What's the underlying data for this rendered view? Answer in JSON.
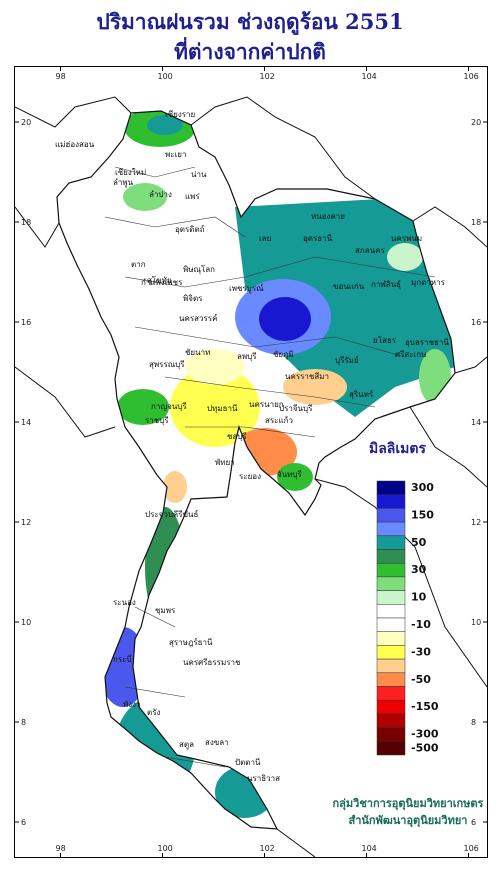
{
  "title_line1": "ปริมาณฝนรวม ช่วงฤดูร้อน 2551",
  "title_line2": "ที่ต่างจากค่าปกติ",
  "legend": {
    "title": "มิลลิเมตร",
    "bins": [
      {
        "color": "#000088",
        "label": "300"
      },
      {
        "color": "#1818d0",
        "label": ""
      },
      {
        "color": "#4a58ee",
        "label": "150"
      },
      {
        "color": "#6a8aff",
        "label": ""
      },
      {
        "color": "#169a96",
        "label": "50"
      },
      {
        "color": "#2f8f52",
        "label": ""
      },
      {
        "color": "#2fbe2f",
        "label": "30"
      },
      {
        "color": "#7ede7e",
        "label": ""
      },
      {
        "color": "#caf5ca",
        "label": "10"
      },
      {
        "color": "#ffffff",
        "label": ""
      },
      {
        "color": "#ffffff",
        "label": "-10"
      },
      {
        "color": "#ffffc0",
        "label": ""
      },
      {
        "color": "#ffff50",
        "label": "-30"
      },
      {
        "color": "#ffcf90",
        "label": ""
      },
      {
        "color": "#ff8c48",
        "label": "-50"
      },
      {
        "color": "#ff2020",
        "label": ""
      },
      {
        "color": "#ee0000",
        "label": "-150"
      },
      {
        "color": "#b00000",
        "label": ""
      },
      {
        "color": "#7a0000",
        "label": "-300"
      },
      {
        "color": "#550000",
        "label": "-500"
      }
    ]
  },
  "lon_ticks": [
    "98",
    "100",
    "102",
    "104",
    "106"
  ],
  "lat_ticks": [
    "20",
    "18",
    "16",
    "14",
    "12",
    "10",
    "8",
    "6"
  ],
  "provinces": [
    "แม่ฮ่องสอน",
    "เชียงราย",
    "พะเยา",
    "เชียงใหม่",
    "ลำพูน",
    "น่าน",
    "ลำปาง",
    "แพร่",
    "อุตรดิตถ์",
    "ตาก",
    "สุโขทัย",
    "พิษณุโลก",
    "เลย",
    "หนองคาย",
    "อุดรธานี",
    "สกลนคร",
    "นครพนม",
    "กาฬสินธุ์",
    "มุกดาหาร",
    "ขอนแก่น",
    "กำแพงเพชร",
    "พิจิตร",
    "เพชรบูรณ์",
    "นครสวรรค์",
    "ชัยภูมิ",
    "ยโสธร",
    "อุบลราชธานี",
    "ชัยนาท",
    "ลพบุรี",
    "สุพรรณบุรี",
    "นครราชสีมา",
    "บุรีรัมย์",
    "สุรินทร์",
    "ศรีสะเกษ",
    "กาญจนบุรี",
    "ปทุมธานี",
    "นครนายก",
    "ราชบุรี",
    "ปราจีนบุรี",
    "สระแก้ว",
    "ชลบุรี",
    "พัทยา",
    "ระยอง",
    "จันทบุรี",
    "ประจวบคีรีขันธ์",
    "ชุมพร",
    "ระนอง",
    "สุราษฎร์ธานี",
    "กระบี่",
    "นครศรีธรรมราช",
    "พังงา",
    "ตรัง",
    "สตูล",
    "สงขลา",
    "ปัตตานี",
    "นราธิวาส"
  ],
  "credit_line1": "กลุ่มวิชาการอุตุนิยมวิทยาเกษตร",
  "credit_line2": "สำนักพัฒนาอุตุนิยมวิทยา"
}
